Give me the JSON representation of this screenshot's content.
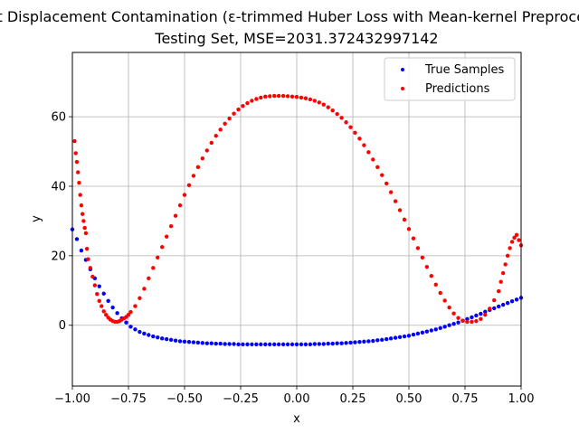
{
  "chart_data": {
    "type": "scatter",
    "title": "Input Displacement Contamination (ε-trimmed Huber Loss with Mean-kernel Preprocessing)",
    "subtitle": "Testing Set, MSE=2031.372432997142",
    "xlabel": "x",
    "ylabel": "y",
    "xlim": [
      -1.0,
      1.0
    ],
    "ylim": [
      -17.5,
      78.5
    ],
    "grid": true,
    "legend_placement": "top-right",
    "xticks": [
      {
        "value": -1.0,
        "label": "−1.00"
      },
      {
        "value": -0.75,
        "label": "−0.75"
      },
      {
        "value": -0.5,
        "label": "−0.50"
      },
      {
        "value": -0.25,
        "label": "−0.25"
      },
      {
        "value": 0.0,
        "label": "0.00"
      },
      {
        "value": 0.25,
        "label": "0.25"
      },
      {
        "value": 0.5,
        "label": "0.50"
      },
      {
        "value": 0.75,
        "label": "0.75"
      },
      {
        "value": 1.0,
        "label": "1.00"
      }
    ],
    "yticks": [
      {
        "value": 0,
        "label": "0"
      },
      {
        "value": 20,
        "label": "20"
      },
      {
        "value": 40,
        "label": "40"
      },
      {
        "value": 60,
        "label": "60"
      }
    ],
    "series": [
      {
        "name": "True Samples",
        "color": "#0000ff",
        "x": [
          -1.0,
          -0.98,
          -0.96,
          -0.94,
          -0.92,
          -0.9,
          -0.88,
          -0.86,
          -0.84,
          -0.82,
          -0.8,
          -0.78,
          -0.76,
          -0.74,
          -0.72,
          -0.7,
          -0.68,
          -0.66,
          -0.64,
          -0.62,
          -0.6,
          -0.58,
          -0.56,
          -0.54,
          -0.52,
          -0.5,
          -0.48,
          -0.46,
          -0.44,
          -0.42,
          -0.4,
          -0.38,
          -0.36,
          -0.34,
          -0.32,
          -0.3,
          -0.28,
          -0.26,
          -0.24,
          -0.22,
          -0.2,
          -0.18,
          -0.16,
          -0.14,
          -0.12,
          -0.1,
          -0.08,
          -0.06,
          -0.04,
          -0.02,
          0.0,
          0.02,
          0.04,
          0.06,
          0.08,
          0.1,
          0.12,
          0.14,
          0.16,
          0.18,
          0.2,
          0.22,
          0.24,
          0.26,
          0.28,
          0.3,
          0.32,
          0.34,
          0.36,
          0.38,
          0.4,
          0.42,
          0.44,
          0.46,
          0.48,
          0.5,
          0.52,
          0.54,
          0.56,
          0.58,
          0.6,
          0.62,
          0.64,
          0.66,
          0.68,
          0.7,
          0.72,
          0.74,
          0.76,
          0.78,
          0.8,
          0.82,
          0.84,
          0.86,
          0.88,
          0.9,
          0.92,
          0.94,
          0.96,
          0.98,
          1.0
        ],
        "y": [
          27.6,
          24.8,
          21.5,
          18.8,
          16.1,
          13.5,
          11.2,
          9.1,
          7.0,
          5.1,
          3.5,
          2.0,
          0.8,
          -0.4,
          -1.2,
          -1.9,
          -2.4,
          -2.8,
          -3.2,
          -3.5,
          -3.8,
          -4.0,
          -4.2,
          -4.4,
          -4.6,
          -4.7,
          -4.8,
          -4.9,
          -5.0,
          -5.1,
          -5.2,
          -5.2,
          -5.3,
          -5.3,
          -5.4,
          -5.4,
          -5.4,
          -5.5,
          -5.5,
          -5.5,
          -5.5,
          -5.5,
          -5.5,
          -5.5,
          -5.5,
          -5.5,
          -5.5,
          -5.5,
          -5.5,
          -5.5,
          -5.5,
          -5.5,
          -5.5,
          -5.5,
          -5.4,
          -5.4,
          -5.4,
          -5.3,
          -5.3,
          -5.2,
          -5.2,
          -5.1,
          -5.0,
          -4.9,
          -4.8,
          -4.7,
          -4.6,
          -4.5,
          -4.3,
          -4.2,
          -4.0,
          -3.8,
          -3.6,
          -3.4,
          -3.2,
          -3.0,
          -2.7,
          -2.4,
          -2.1,
          -1.8,
          -1.5,
          -1.2,
          -0.8,
          -0.4,
          0.0,
          0.4,
          0.8,
          1.3,
          1.8,
          2.3,
          2.8,
          3.3,
          3.9,
          4.4,
          4.9,
          5.4,
          5.9,
          6.4,
          6.9,
          7.4,
          7.9
        ]
      },
      {
        "name": "Predictions",
        "color": "#ff0000",
        "x": [
          -0.99,
          -0.985,
          -0.98,
          -0.975,
          -0.97,
          -0.965,
          -0.96,
          -0.955,
          -0.95,
          -0.945,
          -0.94,
          -0.935,
          -0.93,
          -0.92,
          -0.91,
          -0.9,
          -0.89,
          -0.88,
          -0.87,
          -0.86,
          -0.85,
          -0.84,
          -0.83,
          -0.82,
          -0.81,
          -0.8,
          -0.79,
          -0.78,
          -0.77,
          -0.76,
          -0.75,
          -0.74,
          -0.72,
          -0.7,
          -0.68,
          -0.66,
          -0.64,
          -0.62,
          -0.6,
          -0.58,
          -0.56,
          -0.54,
          -0.52,
          -0.5,
          -0.48,
          -0.46,
          -0.44,
          -0.42,
          -0.4,
          -0.38,
          -0.36,
          -0.34,
          -0.32,
          -0.3,
          -0.28,
          -0.26,
          -0.24,
          -0.22,
          -0.2,
          -0.18,
          -0.16,
          -0.14,
          -0.12,
          -0.1,
          -0.08,
          -0.06,
          -0.04,
          -0.02,
          0.0,
          0.02,
          0.04,
          0.06,
          0.08,
          0.1,
          0.12,
          0.14,
          0.16,
          0.18,
          0.2,
          0.22,
          0.24,
          0.26,
          0.28,
          0.3,
          0.32,
          0.34,
          0.36,
          0.38,
          0.4,
          0.42,
          0.44,
          0.46,
          0.48,
          0.5,
          0.52,
          0.54,
          0.56,
          0.58,
          0.6,
          0.62,
          0.64,
          0.66,
          0.68,
          0.7,
          0.72,
          0.74,
          0.76,
          0.78,
          0.8,
          0.82,
          0.84,
          0.86,
          0.88,
          0.9,
          0.91,
          0.92,
          0.93,
          0.94,
          0.95,
          0.96,
          0.97,
          0.98,
          0.99,
          1.0
        ],
        "y": [
          53.0,
          49.5,
          47.0,
          44.0,
          41.0,
          37.5,
          34.5,
          32.0,
          30.0,
          28.0,
          26.5,
          22.0,
          19.0,
          16.5,
          14.0,
          11.5,
          9.0,
          7.0,
          5.5,
          4.0,
          3.0,
          2.2,
          1.6,
          1.2,
          1.0,
          1.0,
          1.2,
          1.6,
          2.0,
          2.4,
          3.0,
          3.8,
          5.5,
          7.8,
          10.5,
          13.5,
          16.5,
          19.5,
          22.5,
          25.5,
          28.5,
          31.5,
          34.5,
          37.5,
          40.3,
          43.0,
          45.5,
          48.0,
          50.3,
          52.5,
          54.5,
          56.3,
          58.0,
          59.5,
          60.9,
          62.1,
          63.1,
          63.9,
          64.6,
          65.1,
          65.5,
          65.8,
          65.9,
          66.0,
          66.0,
          66.0,
          65.9,
          65.8,
          65.7,
          65.5,
          65.3,
          65.0,
          64.6,
          64.1,
          63.5,
          62.7,
          61.8,
          60.8,
          59.7,
          58.4,
          57.0,
          55.4,
          53.7,
          51.8,
          49.8,
          47.7,
          45.5,
          43.2,
          40.8,
          38.3,
          35.7,
          33.1,
          30.4,
          27.7,
          25.0,
          22.2,
          19.5,
          16.8,
          14.2,
          11.7,
          9.3,
          7.1,
          5.1,
          3.4,
          2.1,
          1.3,
          1.0,
          1.0,
          1.2,
          1.8,
          3.0,
          4.8,
          7.2,
          9.8,
          12.5,
          15.0,
          17.5,
          20.0,
          22.2,
          24.0,
          25.2,
          26.0,
          24.5,
          23.0
        ]
      }
    ]
  }
}
